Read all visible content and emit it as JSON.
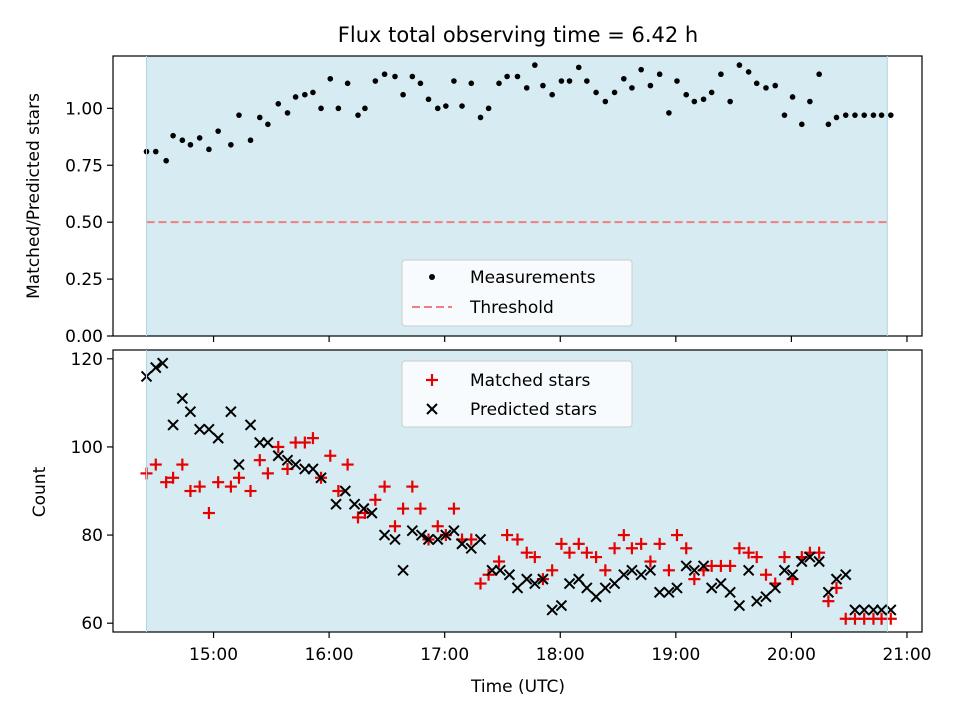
{
  "title": "Flux total observing time = 6.42 h",
  "colors": {
    "observing_band": "#add8e6",
    "measurements": "#000000",
    "threshold": "#f08080",
    "matched": "#e60000",
    "predicted": "#000000"
  },
  "chart_data": [
    {
      "type": "scatter",
      "panel": "top",
      "ylabel": "Matched/Predicted stars",
      "xlim": [
        14.13,
        21.13
      ],
      "ylim": [
        0,
        1.23
      ],
      "yticks": [
        0,
        0.25,
        0.5,
        0.75,
        1.0
      ],
      "ytick_labels": [
        "0.00",
        "0.25",
        "0.50",
        "0.75",
        "1.00"
      ],
      "observing_window": [
        14.42,
        20.83
      ],
      "threshold": 0.5,
      "legend": {
        "position": "lower center",
        "entries": [
          "Measurements",
          "Threshold"
        ]
      },
      "series": [
        {
          "name": "Measurements",
          "marker": "dot",
          "x": [
            14.42,
            14.5,
            14.59,
            14.65,
            14.73,
            14.8,
            14.88,
            14.96,
            15.04,
            15.15,
            15.22,
            15.32,
            15.4,
            15.47,
            15.56,
            15.64,
            15.71,
            15.79,
            15.86,
            15.93,
            16.01,
            16.08,
            16.16,
            16.25,
            16.31,
            16.4,
            16.48,
            16.57,
            16.64,
            16.72,
            16.79,
            16.86,
            16.94,
            17.01,
            17.08,
            17.15,
            17.23,
            17.31,
            17.38,
            17.47,
            17.54,
            17.63,
            17.71,
            17.78,
            17.85,
            17.93,
            18.01,
            18.08,
            18.16,
            18.23,
            18.31,
            18.39,
            18.47,
            18.55,
            18.62,
            18.7,
            18.78,
            18.86,
            18.94,
            19.01,
            19.09,
            19.16,
            19.24,
            19.31,
            19.39,
            19.47,
            19.55,
            19.63,
            19.7,
            19.78,
            19.86,
            19.94,
            20.01,
            20.09,
            20.16,
            20.24,
            20.32,
            20.39,
            20.47,
            20.55,
            20.63,
            20.71,
            20.78,
            20.86
          ],
          "y": [
            0.81,
            0.81,
            0.77,
            0.88,
            0.86,
            0.84,
            0.87,
            0.82,
            0.9,
            0.84,
            0.97,
            0.86,
            0.96,
            0.93,
            1.02,
            0.98,
            1.05,
            1.06,
            1.07,
            1.0,
            1.13,
            1.0,
            1.11,
            0.97,
            1.0,
            1.12,
            1.15,
            1.14,
            1.06,
            1.14,
            1.11,
            1.04,
            1.0,
            1.01,
            1.12,
            1.01,
            1.11,
            0.96,
            1.0,
            1.11,
            1.14,
            1.14,
            1.09,
            1.19,
            1.1,
            1.06,
            1.12,
            1.12,
            1.18,
            1.12,
            1.07,
            1.03,
            1.07,
            1.13,
            1.09,
            1.17,
            1.1,
            1.15,
            0.98,
            1.12,
            1.06,
            1.03,
            1.04,
            1.07,
            1.15,
            1.03,
            1.19,
            1.16,
            1.11,
            1.09,
            1.1,
            0.97,
            1.05,
            0.93,
            1.03,
            1.15,
            0.93,
            0.96,
            0.97,
            0.97,
            0.97,
            0.97,
            0.97,
            0.97
          ]
        }
      ]
    },
    {
      "type": "scatter",
      "panel": "bottom",
      "xlabel": "Time (UTC)",
      "ylabel": "Count",
      "xlim": [
        14.13,
        21.13
      ],
      "ylim": [
        58,
        122
      ],
      "xticks": [
        15,
        16,
        17,
        18,
        19,
        20,
        21
      ],
      "xtick_labels": [
        "15:00",
        "16:00",
        "17:00",
        "18:00",
        "19:00",
        "20:00",
        "21:00"
      ],
      "yticks": [
        60,
        80,
        100,
        120
      ],
      "ytick_labels": [
        "60",
        "80",
        "100",
        "120"
      ],
      "observing_window": [
        14.42,
        20.83
      ],
      "legend": {
        "position": "upper center",
        "entries": [
          "Matched stars",
          "Predicted stars"
        ]
      },
      "series": [
        {
          "name": "Matched stars",
          "marker": "plus",
          "x": [
            14.42,
            14.5,
            14.59,
            14.65,
            14.73,
            14.8,
            14.88,
            14.96,
            15.04,
            15.15,
            15.22,
            15.32,
            15.4,
            15.47,
            15.56,
            15.64,
            15.71,
            15.79,
            15.86,
            15.93,
            16.01,
            16.08,
            16.16,
            16.25,
            16.31,
            16.4,
            16.48,
            16.57,
            16.64,
            16.72,
            16.79,
            16.86,
            16.94,
            17.01,
            17.08,
            17.15,
            17.23,
            17.31,
            17.38,
            17.47,
            17.54,
            17.63,
            17.71,
            17.78,
            17.85,
            17.93,
            18.01,
            18.08,
            18.16,
            18.23,
            18.31,
            18.39,
            18.47,
            18.55,
            18.62,
            18.7,
            18.78,
            18.86,
            18.94,
            19.01,
            19.09,
            19.16,
            19.24,
            19.31,
            19.39,
            19.47,
            19.55,
            19.63,
            19.7,
            19.78,
            19.86,
            19.94,
            20.01,
            20.09,
            20.16,
            20.24,
            20.32,
            20.39,
            20.47,
            20.55,
            20.63,
            20.71,
            20.78,
            20.86
          ],
          "y": [
            94,
            96,
            92,
            93,
            96,
            90,
            91,
            85,
            92,
            91,
            93,
            90,
            97,
            94,
            100,
            95,
            101,
            101,
            102,
            93,
            98,
            90,
            96,
            84,
            85,
            88,
            91,
            82,
            86,
            91,
            86,
            79,
            82,
            80,
            86,
            79,
            79,
            69,
            71,
            74,
            80,
            79,
            76,
            75,
            70,
            72,
            78,
            76,
            78,
            76,
            75,
            72,
            77,
            80,
            77,
            78,
            74,
            78,
            72,
            80,
            77,
            70,
            72,
            73,
            73,
            73,
            77,
            76,
            75,
            71,
            69,
            75,
            70,
            75,
            76,
            76,
            65,
            68,
            61,
            61,
            61,
            61,
            61,
            61
          ]
        },
        {
          "name": "Predicted stars",
          "marker": "x",
          "x": [
            14.42,
            14.5,
            14.56,
            14.65,
            14.73,
            14.8,
            14.88,
            14.96,
            15.04,
            15.15,
            15.22,
            15.32,
            15.4,
            15.47,
            15.56,
            15.64,
            15.71,
            15.79,
            15.86,
            15.93,
            16.06,
            16.14,
            16.22,
            16.3,
            16.37,
            16.48,
            16.57,
            16.64,
            16.72,
            16.8,
            16.86,
            16.94,
            17.01,
            17.08,
            17.15,
            17.23,
            17.31,
            17.41,
            17.48,
            17.56,
            17.63,
            17.71,
            17.78,
            17.85,
            17.93,
            18.01,
            18.08,
            18.16,
            18.23,
            18.31,
            18.39,
            18.47,
            18.55,
            18.62,
            18.7,
            18.78,
            18.86,
            18.94,
            19.01,
            19.09,
            19.16,
            19.24,
            19.31,
            19.39,
            19.47,
            19.55,
            19.63,
            19.7,
            19.78,
            19.86,
            19.94,
            20.01,
            20.09,
            20.16,
            20.24,
            20.32,
            20.39,
            20.47,
            20.55,
            20.63,
            20.71,
            20.78,
            20.86
          ],
          "y": [
            116,
            118,
            119,
            105,
            111,
            108,
            104,
            104,
            102,
            108,
            96,
            105,
            101,
            101,
            98,
            97,
            96,
            95,
            95,
            93,
            87,
            90,
            87,
            86,
            85,
            80,
            79,
            72,
            81,
            80,
            79,
            79,
            80,
            81,
            78,
            77,
            79,
            72,
            72,
            71,
            68,
            70,
            69,
            70,
            63,
            64,
            69,
            70,
            68,
            66,
            68,
            69,
            71,
            72,
            71,
            72,
            67,
            67,
            68,
            73,
            72,
            73,
            68,
            69,
            67,
            64,
            72,
            65,
            66,
            68,
            72,
            71,
            74,
            75,
            74,
            67,
            70,
            71,
            63,
            63,
            63,
            63,
            63
          ]
        }
      ]
    }
  ]
}
